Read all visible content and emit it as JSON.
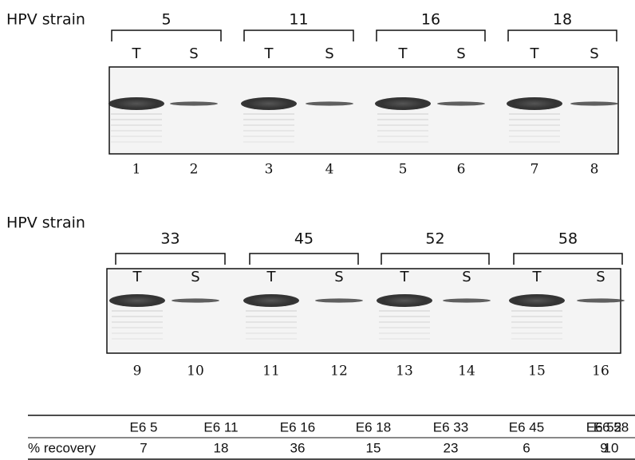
{
  "panels": [
    {
      "label": "HPV strain",
      "strains": [
        "5",
        "11",
        "16",
        "18"
      ],
      "lane_labels": [
        "T",
        "S",
        "T",
        "S",
        "T",
        "S",
        "T",
        "S"
      ],
      "lane_numbers": [
        1,
        2,
        3,
        4,
        5,
        6,
        7,
        8
      ]
    },
    {
      "label": "HPV strain",
      "strains": [
        "33",
        "45",
        "52",
        "58"
      ],
      "lane_labels": [
        "T",
        "S",
        "T",
        "S",
        "T",
        "S",
        "T",
        "S"
      ],
      "lane_numbers": [
        9,
        10,
        11,
        12,
        13,
        14,
        15,
        16
      ]
    }
  ],
  "table": {
    "header": [
      "E6 5",
      "E6 11",
      "E6 16",
      "E6 18",
      "E6 33",
      "E6 45",
      "E6 52",
      "E6 58"
    ],
    "row_label": "% recovery",
    "values": [
      7,
      18,
      36,
      15,
      23,
      6,
      9,
      10
    ]
  }
}
